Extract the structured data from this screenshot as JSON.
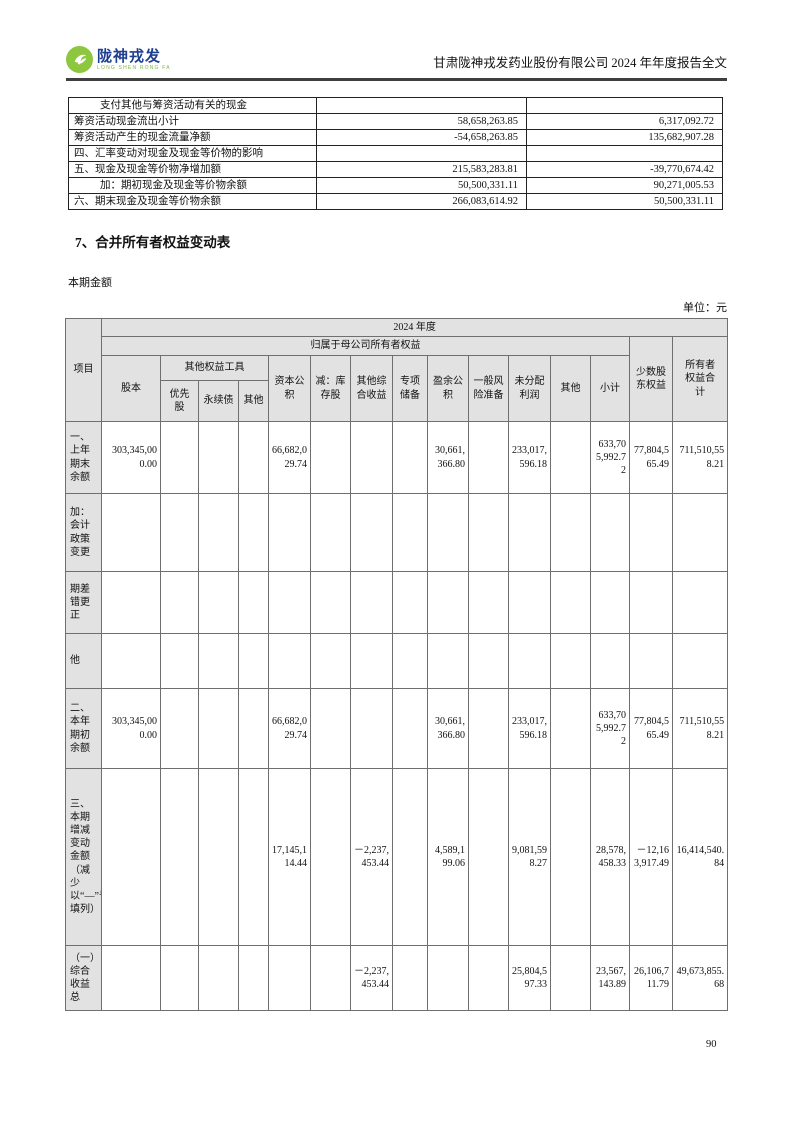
{
  "header": {
    "brand_cn": "陇神戎发",
    "brand_en": "LONG SHEN RONG FA",
    "doc_title": "甘肃陇神戎发药业股份有限公司 2024 年年度报告全文"
  },
  "cashflow_table": {
    "rows": [
      {
        "label": "支付其他与筹资活动有关的现金",
        "indent": true,
        "current": "",
        "prior": ""
      },
      {
        "label": "筹资活动现金流出小计",
        "indent": false,
        "current": "58,658,263.85",
        "prior": "6,317,092.72"
      },
      {
        "label": "筹资活动产生的现金流量净额",
        "indent": false,
        "current": "-54,658,263.85",
        "prior": "135,682,907.28"
      },
      {
        "label": "四、汇率变动对现金及现金等价物的影响",
        "indent": false,
        "current": "",
        "prior": ""
      },
      {
        "label": "五、现金及现金等价物净增加额",
        "indent": false,
        "current": "215,583,283.81",
        "prior": "-39,770,674.42"
      },
      {
        "label": "加：期初现金及现金等价物余额",
        "indent": true,
        "current": "50,500,331.11",
        "prior": "90,271,005.53"
      },
      {
        "label": "六、期末现金及现金等价物余额",
        "indent": false,
        "current": "266,083,614.92",
        "prior": "50,500,331.11"
      }
    ]
  },
  "section": {
    "heading": "7、合并所有者权益变动表",
    "subheading": "本期金额",
    "unit": "单位：元"
  },
  "equity_table": {
    "header": {
      "item": "项目",
      "year": "2024 年度",
      "parent": "归属于母公司所有者权益",
      "minority": "少数股东权益",
      "total": "所有者权益合计",
      "share_capital": "股本",
      "other_equity_tools": "其他权益工具",
      "preferred": "优先股",
      "perpetual": "永续债",
      "other1": "其他",
      "capital_reserve": "资本公积",
      "less_treasury": "减：库存股",
      "oci": "其他综合收益",
      "special_reserve": "专项储备",
      "surplus_reserve": "盈余公积",
      "general_risk": "一般风险准备",
      "retained": "未分配利润",
      "other2": "其他",
      "subtotal": "小计"
    },
    "rows": [
      {
        "label": "一、上年期末余额",
        "cells": [
          "303,345,000.00",
          "",
          "",
          "",
          "66,682,029.74",
          "",
          "",
          "",
          "30,661,366.80",
          "",
          "233,017,596.18",
          "",
          "633,705,992.72",
          "77,804,565.49",
          "711,510,558.21"
        ]
      },
      {
        "label": "加：会计政策变更",
        "cells": [
          "",
          "",
          "",
          "",
          "",
          "",
          "",
          "",
          "",
          "",
          "",
          "",
          "",
          "",
          ""
        ]
      },
      {
        "label": "期差错更正",
        "cells": [
          "",
          "",
          "",
          "",
          "",
          "",
          "",
          "",
          "",
          "",
          "",
          "",
          "",
          "",
          ""
        ]
      },
      {
        "label": "他",
        "cells": [
          "",
          "",
          "",
          "",
          "",
          "",
          "",
          "",
          "",
          "",
          "",
          "",
          "",
          "",
          ""
        ]
      },
      {
        "label": "二、本年期初余额",
        "cells": [
          "303,345,000.00",
          "",
          "",
          "",
          "66,682,029.74",
          "",
          "",
          "",
          "30,661,366.80",
          "",
          "233,017,596.18",
          "",
          "633,705,992.72",
          "77,804,565.49",
          "711,510,558.21"
        ]
      },
      {
        "label": "三、本期增减变动金额（减少以“—”号填列）",
        "cells": [
          "",
          "",
          "",
          "",
          "17,145,114.44",
          "",
          "－2,237,453.44",
          "",
          "4,589,199.06",
          "",
          "9,081,598.27",
          "",
          "28,578,458.33",
          "－12,163,917.49",
          "16,414,540.84"
        ]
      },
      {
        "label": "（一）综合收益总",
        "cells": [
          "",
          "",
          "",
          "",
          "",
          "",
          "－2,237,453.44",
          "",
          "",
          "",
          "25,804,597.33",
          "",
          "23,567,143.89",
          "26,106,711.79",
          "49,673,855.68"
        ]
      }
    ]
  },
  "footer": {
    "page_number": "90"
  }
}
